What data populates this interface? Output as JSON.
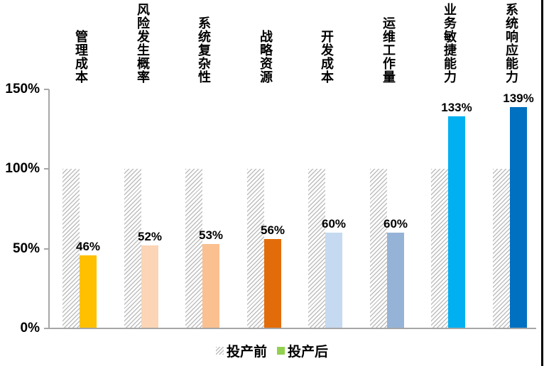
{
  "chart_data": {
    "type": "bar",
    "title": "",
    "categories": [
      "管理成本",
      "风险发生概率",
      "系统复杂性",
      "战略资源",
      "开发成本",
      "运维工作量",
      "业务敏捷能力",
      "系统响应能力"
    ],
    "series": [
      {
        "name": "投产前",
        "values": [
          100,
          100,
          100,
          100,
          100,
          100,
          100,
          100
        ],
        "style": "hatched",
        "hatch_color": "#bdbdbd",
        "value_labels_shown": false
      },
      {
        "name": "投产后",
        "values": [
          46,
          52,
          53,
          56,
          60,
          60,
          133,
          139
        ],
        "value_labels": [
          "46%",
          "52%",
          "53%",
          "56%",
          "60%",
          "60%",
          "133%",
          "139%"
        ],
        "bar_colors": [
          "#FFC000",
          "#FBD5B5",
          "#FAC090",
          "#E36C0A",
          "#C5D9F1",
          "#95B3D7",
          "#00B0F0",
          "#0070C0"
        ],
        "legend_color": "#92D050"
      }
    ],
    "y_ticks": [
      0,
      50,
      100,
      150
    ],
    "y_tick_labels": [
      "0%",
      "50%",
      "100%",
      "150%"
    ],
    "ylim": [
      0,
      150
    ],
    "grid": false,
    "legend_position": "bottom",
    "axis_color": "#a6a6a6"
  }
}
